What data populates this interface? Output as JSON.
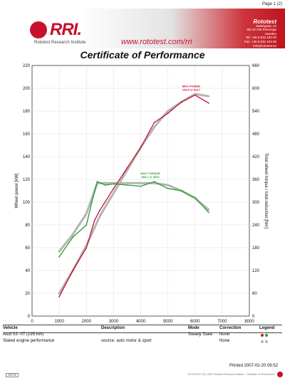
{
  "page_label": "Page 1 (2)",
  "header": {
    "logo_text": "RRI.",
    "logo_subtitle": "Rototest Research Institute",
    "website": "www.rototest.com/rri",
    "address_brand": "Rototest",
    "address_lines": [
      "Sattelgatan 23",
      "SE-16 245 Rönninge",
      "Sweden",
      "Tel: +46 8 532 193 00",
      "Fax: +46 8 532 193 50",
      "info@rototest.se"
    ]
  },
  "title": "Certificate of Performance",
  "chart_data": {
    "type": "line",
    "xlabel": "Engine speed [1/min]",
    "ylabel_left": "Wheel power [kW]",
    "ylabel_right": "Total wheel torque / total reduction [Nm]",
    "xlim": [
      0,
      8000
    ],
    "ylim_left": [
      0,
      220
    ],
    "ylim_right": [
      0,
      660
    ],
    "x_ticks": [
      0,
      1000,
      2000,
      3000,
      4000,
      5000,
      6000,
      7000,
      8000
    ],
    "y_ticks_left": [
      0,
      20,
      40,
      60,
      80,
      100,
      120,
      140,
      160,
      180,
      200,
      220
    ],
    "y_ticks_right": [
      0,
      60,
      120,
      180,
      240,
      300,
      360,
      420,
      480,
      540,
      600,
      660
    ],
    "grid": true,
    "annotations": [
      {
        "label": "MAX POWER",
        "value": "194.8 @ 6017",
        "color": "#c8102e",
        "x": 6017,
        "y": 194.8,
        "axis": "left"
      },
      {
        "label": "MAX TORQUE",
        "value": "354.1 @ 4513",
        "color": "#2a9a2a",
        "x": 4513,
        "y": 354.1,
        "axis": "right"
      }
    ],
    "series": [
      {
        "role": "power-measured",
        "axis": "left",
        "color": "#c8102e",
        "width": 1.3,
        "x": [
          1000,
          1500,
          2000,
          2300,
          2500,
          3000,
          3500,
          4000,
          4500,
          5000,
          5500,
          6000,
          6500
        ],
        "y": [
          17,
          40,
          60,
          84,
          93,
          112,
          130,
          148,
          170,
          178,
          188,
          194,
          187
        ]
      },
      {
        "role": "power-stated",
        "axis": "left",
        "color": "#b4b4b4",
        "width": 3,
        "x": [
          1000,
          1500,
          2000,
          2500,
          3000,
          3500,
          4000,
          4500,
          5000,
          5500,
          6000,
          6500
        ],
        "y": [
          20,
          40,
          62,
          88,
          108,
          128,
          148,
          166,
          180,
          188,
          195,
          193
        ]
      },
      {
        "role": "torque-measured",
        "axis": "right",
        "color": "#2a9a2a",
        "width": 1.3,
        "x": [
          1000,
          1500,
          2000,
          2200,
          2400,
          2700,
          3000,
          3500,
          4000,
          4500,
          5000,
          5500,
          6000,
          6500
        ],
        "y": [
          156,
          208,
          240,
          300,
          354,
          345,
          348,
          345,
          342,
          354,
          336,
          330,
          312,
          273
        ]
      },
      {
        "role": "torque-stated",
        "axis": "right",
        "color": "#b4b4b4",
        "width": 3,
        "x": [
          1000,
          1500,
          2000,
          2400,
          3000,
          4000,
          4500,
          5000,
          5500,
          6000,
          6500
        ],
        "y": [
          170,
          215,
          270,
          350,
          350,
          350,
          350,
          345,
          330,
          310,
          280
        ]
      }
    ]
  },
  "table": {
    "headers": {
      "vehicle": "Vehicle",
      "description": "Description",
      "mode": "Mode",
      "correction": "Correction",
      "legend": "Legend"
    },
    "rows": [
      {
        "vehicle": "Audi S3 -07 (195 kW)",
        "description": "",
        "mode": "Steady State",
        "correction": "None",
        "legend_colors": [
          "#c8102e",
          "#2a9a2a"
        ]
      },
      {
        "vehicle": "Stated engine performance",
        "description": "source: auto motor & sport",
        "mode": "",
        "correction": "None",
        "legend_colors": [
          "#b4b4b4",
          "#b4b4b4"
        ]
      }
    ]
  },
  "printed": "Printed 2007-02-20 09:52",
  "footer": {
    "left_code": "000799",
    "right_text": "ROTOTEST (PL) 2007 Rototest Research Institute · Certificate of Performance"
  }
}
